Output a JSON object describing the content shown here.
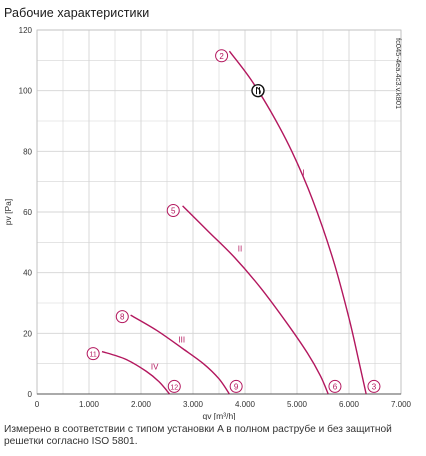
{
  "page": {
    "title": "Рабочие характеристики",
    "footnote": "Измерено в соответствии с типом установки A в полном раструбе и без защитной решетки согласно ISO 5801."
  },
  "colors": {
    "curve": "#b3175e",
    "grid": "#d4d4d4",
    "axis": "#555555",
    "text": "#333333"
  },
  "chart_data": {
    "type": "line",
    "xlabel": "qv [m³/h]",
    "ylabel": "pv [Pa]",
    "xlim": [
      0,
      7000
    ],
    "ylim": [
      0,
      120
    ],
    "x_ticks": [
      0,
      1000,
      2000,
      3000,
      4000,
      5000,
      6000,
      7000
    ],
    "x_tick_labels": [
      "0",
      "1.000",
      "2.000",
      "3.000",
      "4.000",
      "5.000",
      "6.000",
      "7.000"
    ],
    "y_ticks": [
      0,
      20,
      40,
      60,
      80,
      100,
      120
    ],
    "y_tick_labels": [
      "0",
      "20",
      "40",
      "60",
      "80",
      "100",
      "120"
    ],
    "grid": true,
    "model_label": "fc045-4ea.4c3.v.k801",
    "series": [
      {
        "name": "I",
        "points": [
          [
            3700,
            113
          ],
          [
            4100,
            104
          ],
          [
            4500,
            93
          ],
          [
            4900,
            80
          ],
          [
            5300,
            64
          ],
          [
            5700,
            44
          ],
          [
            6000,
            25
          ],
          [
            6200,
            10
          ],
          [
            6330,
            0
          ]
        ],
        "label_at": [
          5100,
          72
        ],
        "start_marker": {
          "text": "2",
          "x": 3550,
          "y": 111.5
        },
        "end_marker": {
          "text": "3",
          "x": 6480,
          "y": 2.5
        }
      },
      {
        "name": "II",
        "points": [
          [
            2800,
            62
          ],
          [
            3300,
            53.5
          ],
          [
            3800,
            45
          ],
          [
            4300,
            35
          ],
          [
            4800,
            23.5
          ],
          [
            5200,
            13.5
          ],
          [
            5450,
            6
          ],
          [
            5600,
            0
          ]
        ],
        "label_at": [
          3860,
          47
        ],
        "start_marker": {
          "text": "5",
          "x": 2620,
          "y": 60.5
        },
        "end_marker": {
          "text": "6",
          "x": 5730,
          "y": 2.5
        }
      },
      {
        "name": "III",
        "points": [
          [
            1800,
            26
          ],
          [
            2300,
            21
          ],
          [
            2800,
            15
          ],
          [
            3200,
            10
          ],
          [
            3500,
            5
          ],
          [
            3700,
            0
          ]
        ],
        "label_at": [
          2720,
          17
        ],
        "start_marker": {
          "text": "8",
          "x": 1640,
          "y": 25.5
        },
        "end_marker": {
          "text": "9",
          "x": 3830,
          "y": 2.5
        }
      },
      {
        "name": "IV",
        "points": [
          [
            1250,
            14
          ],
          [
            1700,
            11.5
          ],
          [
            2100,
            7.5
          ],
          [
            2350,
            4
          ],
          [
            2550,
            0
          ]
        ],
        "label_at": [
          2190,
          8
        ],
        "start_marker": {
          "text": "11",
          "x": 1080,
          "y": 13.3
        },
        "end_marker": {
          "text": "12",
          "x": 2640,
          "y": 2.5
        }
      }
    ],
    "operating_point": {
      "text": "Ⓓ",
      "x": 4250,
      "y": 100
    }
  }
}
